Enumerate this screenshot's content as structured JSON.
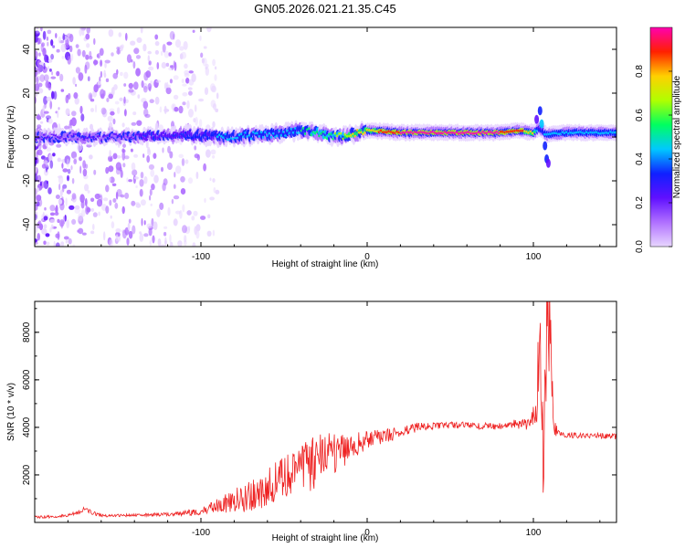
{
  "title": "GN05.2026.021.21.35.C45",
  "chart_data": [
    {
      "type": "heatmap",
      "xlabel": "Height of straight line (km)",
      "ylabel": "Frequency (Hz)",
      "xlim": [
        -200,
        150
      ],
      "ylim": [
        -50,
        50
      ],
      "x_ticks": [
        -100,
        0,
        100
      ],
      "x_tick_labels": [
        "-100",
        "0",
        "100"
      ],
      "y_ticks": [
        40,
        20,
        0,
        -20,
        -40
      ],
      "y_tick_labels": [
        "40",
        "20",
        "0",
        "-20",
        "-40"
      ],
      "colorbar": {
        "label": "Normalized spectral amplitude",
        "range": [
          0,
          1
        ],
        "ticks": [
          0.0,
          0.2,
          0.4,
          0.6,
          0.8
        ],
        "tick_labels": [
          "0.0",
          "0.2",
          "0.4",
          "0.6",
          "0.8"
        ],
        "colormap": [
          "#e8d6ff",
          "#b070ff",
          "#6010ff",
          "#1020ff",
          "#00c8ff",
          "#00ff60",
          "#b0ff00",
          "#ffd000",
          "#ff2000",
          "#ff00b0"
        ]
      },
      "ridge": {
        "x": [
          -190,
          -150,
          -110,
          -90,
          -60,
          -40,
          -30,
          -20,
          -10,
          0,
          20,
          60,
          80,
          92,
          100,
          104,
          108,
          120,
          150
        ],
        "freq_hz": [
          0,
          0,
          1,
          0,
          1,
          3,
          2,
          0,
          1,
          3,
          2,
          2,
          2,
          3,
          2,
          4,
          1,
          2,
          2
        ],
        "peak_amplitude": [
          0.25,
          0.25,
          0.3,
          0.4,
          0.45,
          0.5,
          0.55,
          0.6,
          0.7,
          0.75,
          0.9,
          0.9,
          0.9,
          0.85,
          0.7,
          0.3,
          0.5,
          0.4,
          0.4
        ]
      }
    },
    {
      "type": "line",
      "xlabel": "Height of straight line (km)",
      "ylabel": "SNR (10 * v/v)",
      "xlim": [
        -200,
        150
      ],
      "ylim": [
        0,
        9300
      ],
      "x_ticks": [
        -100,
        0,
        100
      ],
      "x_tick_labels": [
        "-100",
        "0",
        "100"
      ],
      "y_ticks": [
        2000,
        4000,
        6000,
        8000
      ],
      "y_tick_labels": [
        "2000",
        "4000",
        "6000",
        "8000"
      ],
      "series": [
        {
          "name": "SNR",
          "color": "#ee2222",
          "x": [
            -200,
            -180,
            -170,
            -160,
            -140,
            -120,
            -100,
            -90,
            -80,
            -70,
            -60,
            -50,
            -40,
            -30,
            -20,
            -10,
            0,
            10,
            20,
            30,
            40,
            50,
            60,
            70,
            80,
            90,
            98,
            102,
            104,
            106,
            108,
            110,
            112,
            115,
            120,
            130,
            140,
            150
          ],
          "y": [
            220,
            280,
            550,
            280,
            300,
            350,
            450,
            700,
            900,
            1100,
            1500,
            1900,
            2300,
            2500,
            2900,
            3100,
            3500,
            3600,
            3800,
            4000,
            4050,
            4100,
            4100,
            4050,
            4050,
            4150,
            4100,
            5000,
            8500,
            3000,
            7500,
            9200,
            4000,
            3800,
            3700,
            3650,
            3650,
            3600
          ],
          "noise_amplitude": [
            60,
            60,
            120,
            60,
            60,
            80,
            150,
            300,
            500,
            700,
            800,
            900,
            1000,
            1200,
            900,
            600,
            400,
            300,
            250,
            200,
            150,
            150,
            150,
            150,
            150,
            200,
            300,
            800,
            2500,
            2000,
            2500,
            2500,
            400,
            150,
            150,
            120,
            120,
            120
          ]
        }
      ]
    }
  ]
}
